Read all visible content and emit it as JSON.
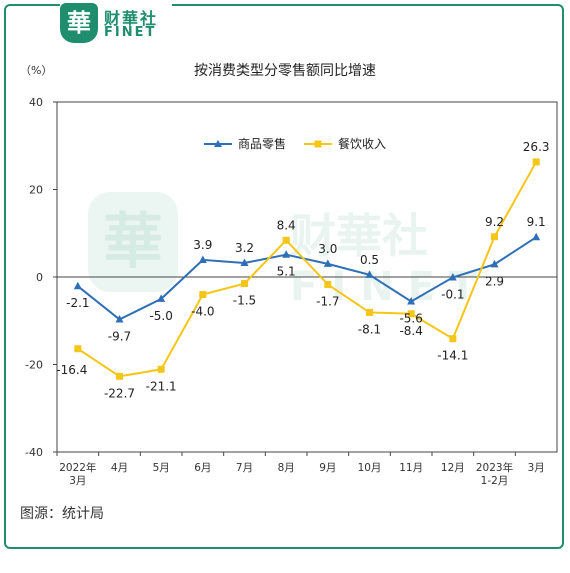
{
  "brand": {
    "badge": "華",
    "name_cn": "财華社",
    "name_en": "FINET"
  },
  "source": "图源：统计局",
  "colors": {
    "retail": "#2e6fb7",
    "catering": "#f5c518",
    "frame": "#1e8e6e"
  },
  "chart_data": {
    "type": "line",
    "title": "按消费类型分零售额同比增速",
    "yunit": "（%）",
    "ylim": [
      -40,
      40
    ],
    "yticks": [
      -40,
      -20,
      0,
      20,
      40
    ],
    "categories": [
      [
        "2022年",
        "3月"
      ],
      [
        "4月"
      ],
      [
        "5月"
      ],
      [
        "6月"
      ],
      [
        "7月"
      ],
      [
        "8月"
      ],
      [
        "9月"
      ],
      [
        "10月"
      ],
      [
        "11月"
      ],
      [
        "12月"
      ],
      [
        "2023年",
        "1-2月"
      ],
      [
        "3月"
      ]
    ],
    "legend_position": "top-center",
    "series": [
      {
        "name": "商品零售",
        "marker": "triangle",
        "values": [
          -2.1,
          -9.7,
          -5.0,
          3.9,
          3.2,
          5.1,
          3.0,
          0.5,
          -5.6,
          -0.1,
          2.9,
          9.1
        ],
        "labels": [
          "-2.1",
          "-9.7",
          "-5.0",
          "3.9",
          "3.2",
          "5.1",
          "3.0",
          "0.5",
          "-5.6",
          "-0.1",
          "2.9",
          "9.1"
        ]
      },
      {
        "name": "餐饮收入",
        "marker": "square",
        "values": [
          -16.4,
          -22.7,
          -21.1,
          -4.0,
          -1.5,
          8.4,
          -1.7,
          -8.1,
          -8.4,
          -14.1,
          9.2,
          26.3
        ],
        "labels": [
          "-16.4",
          "-22.7",
          "-21.1",
          "-4.0",
          "-1.5",
          "8.4",
          "-1.7",
          "-8.1",
          "-8.4",
          "-14.1",
          "9.2",
          "26.3"
        ]
      }
    ]
  }
}
